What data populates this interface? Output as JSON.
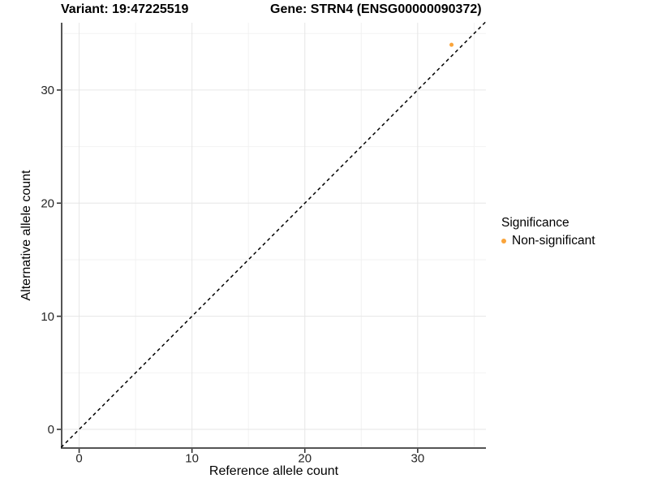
{
  "header": {
    "variant_title": "Variant: 19:47225519",
    "gene_title": "Gene: STRN4 (ENSG00000090372)"
  },
  "chart_data": {
    "type": "scatter",
    "xlabel": "Reference allele count",
    "ylabel": "Alternative allele count",
    "xlim": [
      -1.55,
      36.05
    ],
    "ylim": [
      -1.65,
      35.95
    ],
    "xticks": [
      0,
      10,
      20,
      30
    ],
    "yticks": [
      0,
      10,
      20,
      30
    ],
    "xminor": [
      5,
      15,
      25,
      35
    ],
    "yminor": [
      5,
      15,
      25,
      35
    ],
    "grid": true,
    "points": [
      {
        "x": 33,
        "y": 34,
        "series": "Non-significant"
      }
    ],
    "reference_line": {
      "style": "dashed",
      "from": [
        -1.6,
        -1.6
      ],
      "to": [
        36.1,
        36.1
      ]
    },
    "legend": {
      "title": "Significance",
      "position": "right",
      "entries": [
        {
          "label": "Non-significant",
          "color": "#FAA43A"
        }
      ]
    },
    "colors": {
      "point": "#FAA43A",
      "axis_line": "#555555",
      "grid_major": "#e6e6e6",
      "grid_minor": "#f2f2f2",
      "reference_line": "#000000",
      "tick_label": "#262626",
      "background": "#ffffff"
    }
  }
}
